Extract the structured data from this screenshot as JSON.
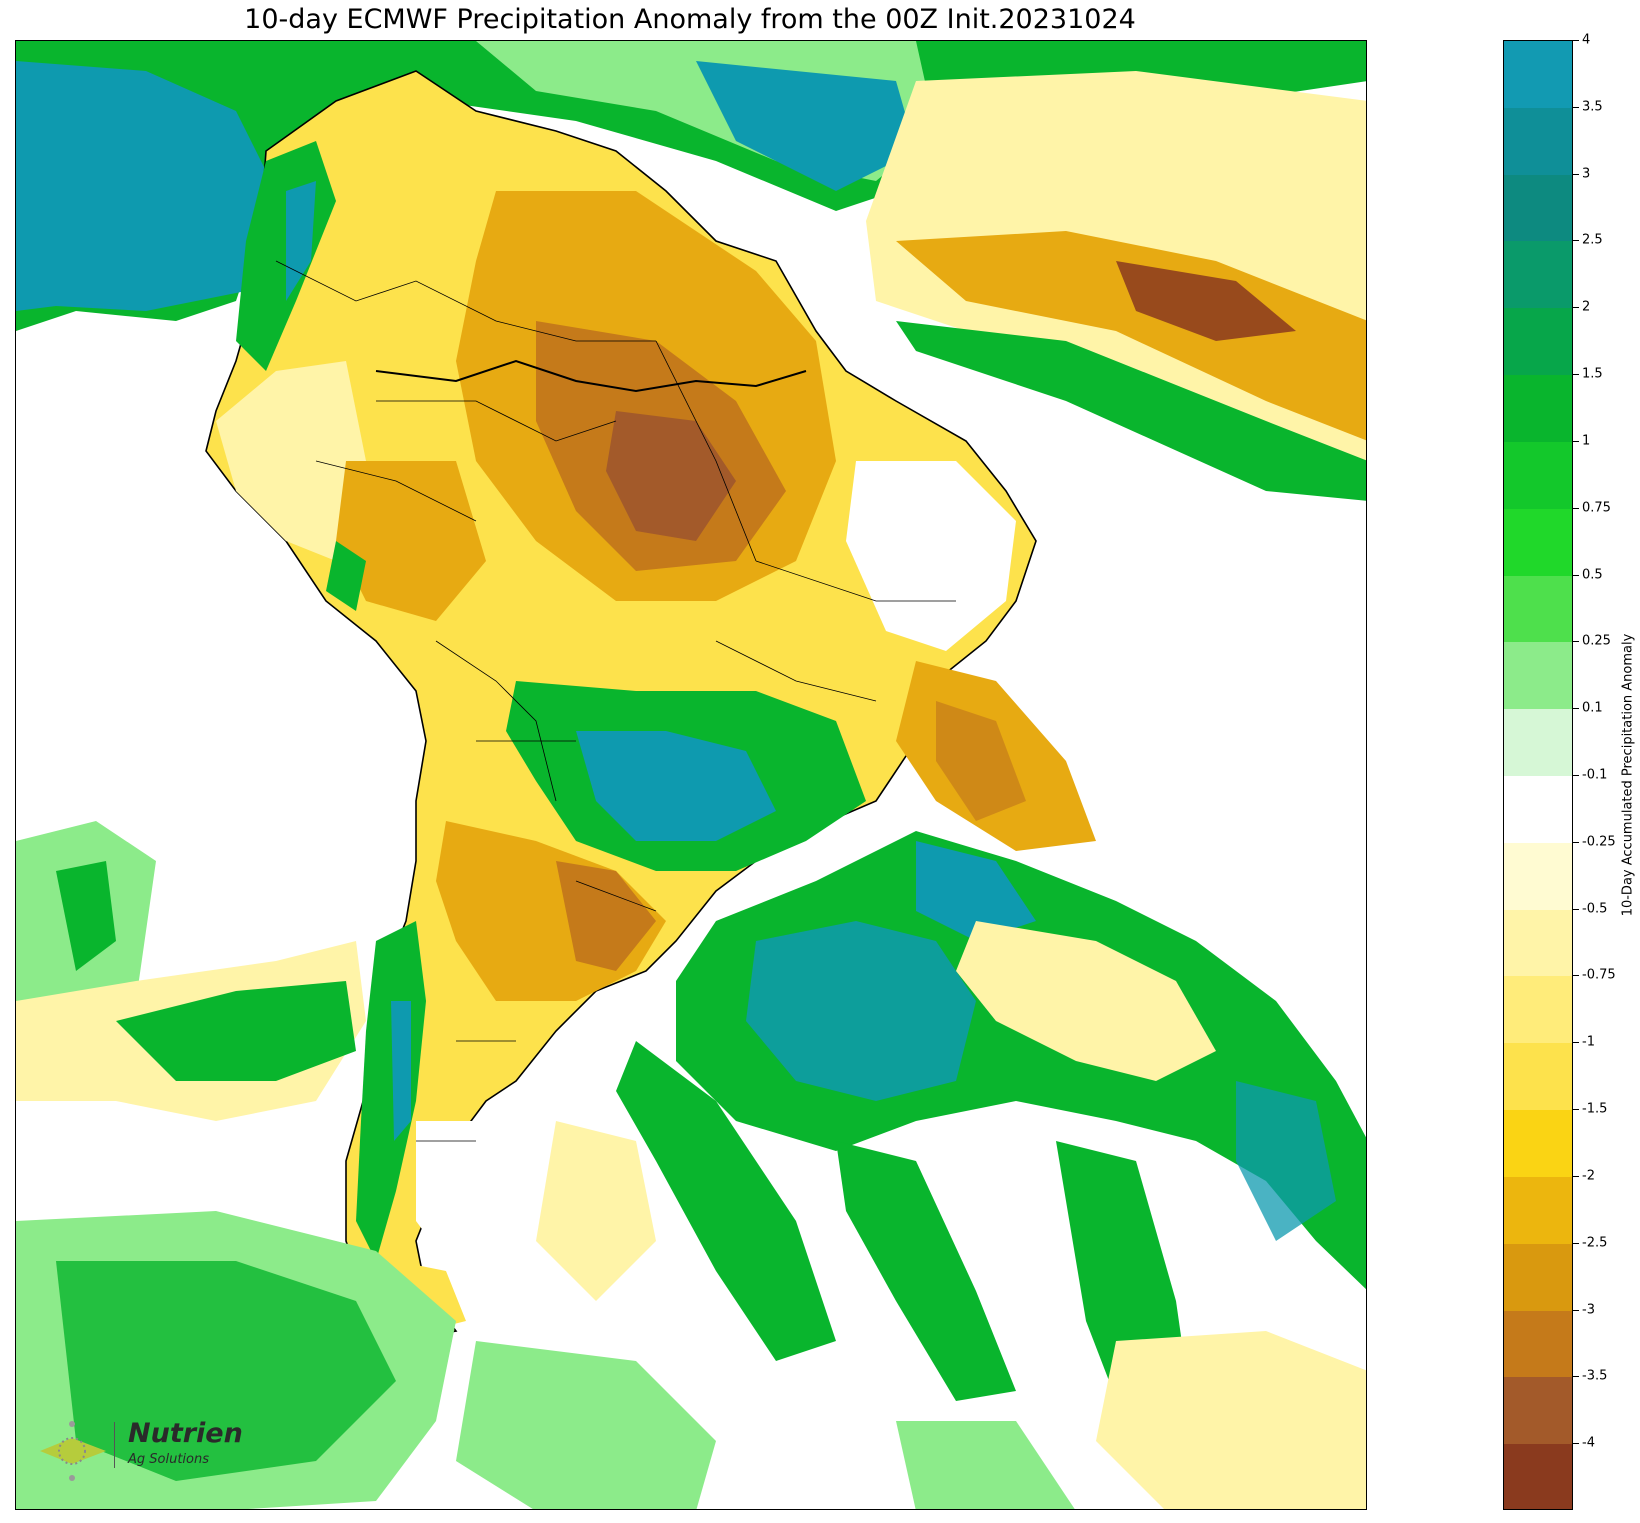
{
  "title": "10-day ECMWF Precipitation Anomaly from the 00Z Init.20231024",
  "colorbar": {
    "label": "10-Day Accumulated Precipitation Anomaly",
    "tick_labels": [
      "4",
      "3.5",
      "3",
      "2.5",
      "2",
      "1.5",
      "1",
      "0.75",
      "0.5",
      "0.25",
      "0.1",
      "-0.1",
      "-0.25",
      "-0.5",
      "-0.75",
      "-1",
      "-1.5",
      "-2",
      "-2.5",
      "-3",
      "-3.5",
      "-4"
    ],
    "colors_top_to_bottom": [
      "#129ab2",
      "#0f8f98",
      "#0d8a80",
      "#0a9a6a",
      "#07a64a",
      "#09b52d",
      "#13c82b",
      "#20d82a",
      "#4ee04c",
      "#8ceb8a",
      "#d6f7d6",
      "#ffffff",
      "#fffbd2",
      "#fff4a8",
      "#ffec7a",
      "#fde24c",
      "#fad414",
      "#ecb60e",
      "#d9990f",
      "#c57a1a",
      "#a35a2a",
      "#8a3a1e"
    ]
  },
  "map": {
    "colors": {
      "deep_wet": "#0e9aaf",
      "wet": "#09b52d",
      "light_wet": "#8ceb8a",
      "very_light_wet": "#d6f7d6",
      "light_dry": "#fff4a8",
      "dry": "#fde24c",
      "moderate_dry": "#e7aa12",
      "strong_dry": "#c57a1a",
      "extreme_dry": "#8a3a1e",
      "coastline": "#000000"
    }
  },
  "logo": {
    "brand": "Nutrien",
    "sub": "Ag Solutions",
    "icon": "nutrien-leaf-icon"
  }
}
